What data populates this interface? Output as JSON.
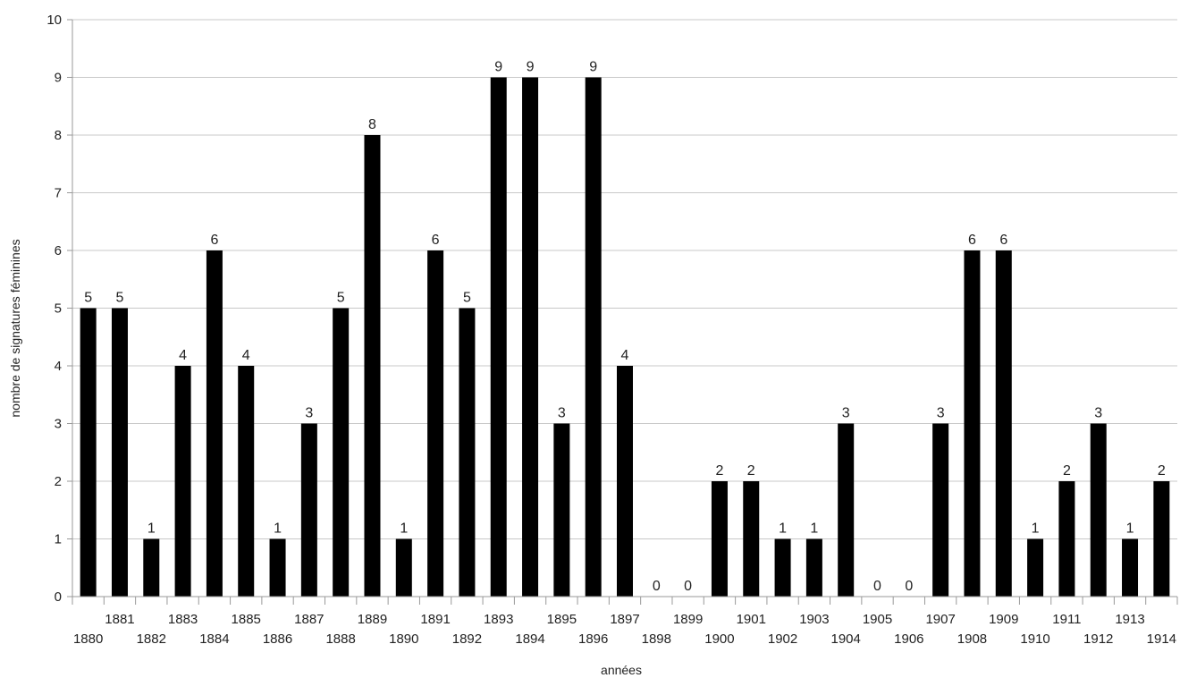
{
  "chart_data": {
    "type": "bar",
    "xlabel": "années",
    "ylabel": "nombre de signatures féminines",
    "ylim": [
      0,
      10
    ],
    "yticks": [
      "0",
      "1",
      "2",
      "3",
      "4",
      "5",
      "6",
      "7",
      "8",
      "9",
      "10"
    ],
    "grid": true,
    "legend": "none",
    "bar_color": "#000000",
    "categories": [
      "1880",
      "1881",
      "1882",
      "1883",
      "1884",
      "1885",
      "1886",
      "1887",
      "1888",
      "1889",
      "1890",
      "1891",
      "1892",
      "1893",
      "1894",
      "1895",
      "1896",
      "1897",
      "1898",
      "1899",
      "1900",
      "1901",
      "1902",
      "1903",
      "1904",
      "1905",
      "1906",
      "1907",
      "1908",
      "1909",
      "1910",
      "1911",
      "1912",
      "1913",
      "1914"
    ],
    "values": [
      5,
      5,
      1,
      4,
      6,
      4,
      1,
      3,
      5,
      8,
      1,
      6,
      5,
      9,
      9,
      3,
      9,
      4,
      0,
      0,
      2,
      2,
      1,
      1,
      3,
      0,
      0,
      3,
      6,
      6,
      1,
      2,
      3,
      1,
      2
    ]
  }
}
